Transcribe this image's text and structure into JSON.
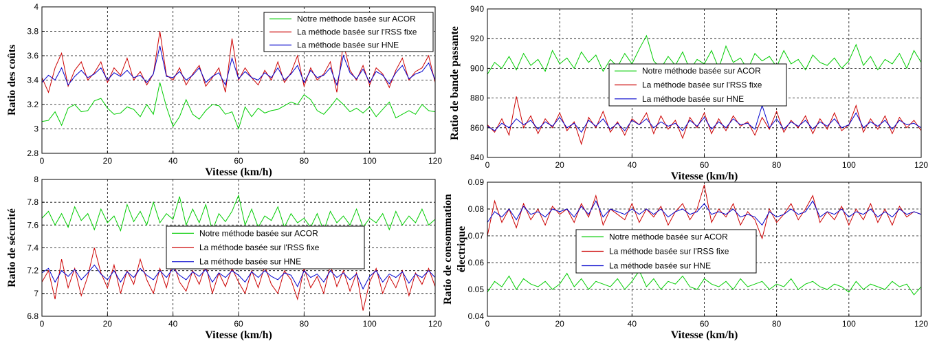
{
  "colors": {
    "acor": "#00cc00",
    "rss": "#cc0000",
    "hne": "#0000cc",
    "grid": "#000000"
  },
  "chart_data": [
    {
      "type": "line",
      "xlabel": "Vitesse (km/h)",
      "ylabel": [
        "Ratio des coûts"
      ],
      "xlim": [
        0,
        120
      ],
      "ylim": [
        2.8,
        4.0
      ],
      "xticks": [
        "0",
        "20",
        "40",
        "60",
        "80",
        "100",
        "120"
      ],
      "yticks": [
        "2.8",
        "3",
        "3.2",
        "3.4",
        "3.6",
        "3.8",
        "4"
      ],
      "grid": true,
      "legend_position": "top-right",
      "x": [
        0,
        2,
        4,
        6,
        8,
        10,
        12,
        14,
        16,
        18,
        20,
        22,
        24,
        26,
        28,
        30,
        32,
        34,
        36,
        38,
        40,
        42,
        44,
        46,
        48,
        50,
        52,
        54,
        56,
        58,
        60,
        62,
        64,
        66,
        68,
        70,
        72,
        74,
        76,
        78,
        80,
        82,
        84,
        86,
        88,
        90,
        92,
        94,
        96,
        98,
        100,
        102,
        104,
        106,
        108,
        110,
        112,
        114,
        116,
        118,
        120
      ],
      "series": [
        {
          "name": "Notre méthode basée sur ACOR",
          "key": "acor",
          "values": [
            3.06,
            3.07,
            3.14,
            3.03,
            3.17,
            3.2,
            3.14,
            3.15,
            3.23,
            3.25,
            3.17,
            3.12,
            3.13,
            3.18,
            3.16,
            3.1,
            3.2,
            3.12,
            3.38,
            3.18,
            3.02,
            3.1,
            3.24,
            3.12,
            3.08,
            3.15,
            3.2,
            3.19,
            3.12,
            3.14,
            3.0,
            3.18,
            3.1,
            3.17,
            3.13,
            3.15,
            3.16,
            3.19,
            3.22,
            3.2,
            3.28,
            3.24,
            3.15,
            3.12,
            3.18,
            3.25,
            3.2,
            3.14,
            3.17,
            3.13,
            3.18,
            3.1,
            3.16,
            3.22,
            3.09,
            3.12,
            3.15,
            3.12,
            3.2,
            3.15,
            3.14
          ]
        },
        {
          "name": "La méthode basée sur l'RSS fixe",
          "key": "rss",
          "values": [
            3.42,
            3.3,
            3.5,
            3.62,
            3.35,
            3.48,
            3.55,
            3.4,
            3.46,
            3.55,
            3.38,
            3.5,
            3.44,
            3.58,
            3.4,
            3.47,
            3.36,
            3.45,
            3.8,
            3.44,
            3.4,
            3.5,
            3.36,
            3.45,
            3.52,
            3.35,
            3.42,
            3.5,
            3.3,
            3.74,
            3.4,
            3.5,
            3.42,
            3.36,
            3.48,
            3.4,
            3.55,
            3.38,
            3.46,
            3.6,
            3.35,
            3.5,
            3.4,
            3.45,
            3.55,
            3.3,
            3.7,
            3.48,
            3.4,
            3.52,
            3.36,
            3.5,
            3.45,
            3.34,
            3.48,
            3.58,
            3.4,
            3.47,
            3.5,
            3.6,
            3.38
          ]
        },
        {
          "name": "La méthode basée sur HNE",
          "key": "hne",
          "values": [
            3.38,
            3.44,
            3.4,
            3.5,
            3.36,
            3.43,
            3.48,
            3.42,
            3.45,
            3.5,
            3.4,
            3.46,
            3.43,
            3.48,
            3.42,
            3.44,
            3.38,
            3.45,
            3.68,
            3.43,
            3.42,
            3.47,
            3.4,
            3.44,
            3.5,
            3.38,
            3.43,
            3.46,
            3.36,
            3.58,
            3.41,
            3.47,
            3.42,
            3.4,
            3.46,
            3.42,
            3.5,
            3.4,
            3.45,
            3.52,
            3.38,
            3.48,
            3.42,
            3.44,
            3.5,
            3.36,
            3.6,
            3.46,
            3.41,
            3.49,
            3.38,
            3.47,
            3.44,
            3.37,
            3.46,
            3.52,
            3.41,
            3.45,
            3.47,
            3.54,
            3.4
          ]
        }
      ]
    },
    {
      "type": "line",
      "xlabel": "Vitesse (km/h)",
      "ylabel": [
        "Ratio de bande passante"
      ],
      "xlim": [
        0,
        120
      ],
      "ylim": [
        840,
        940
      ],
      "xticks": [
        "0",
        "20",
        "40",
        "60",
        "80",
        "100",
        "120"
      ],
      "yticks": [
        "840",
        "860",
        "880",
        "900",
        "920",
        "940"
      ],
      "grid": true,
      "legend_position": "center",
      "x": [
        0,
        2,
        4,
        6,
        8,
        10,
        12,
        14,
        16,
        18,
        20,
        22,
        24,
        26,
        28,
        30,
        32,
        34,
        36,
        38,
        40,
        42,
        44,
        46,
        48,
        50,
        52,
        54,
        56,
        58,
        60,
        62,
        64,
        66,
        68,
        70,
        72,
        74,
        76,
        78,
        80,
        82,
        84,
        86,
        88,
        90,
        92,
        94,
        96,
        98,
        100,
        102,
        104,
        106,
        108,
        110,
        112,
        114,
        116,
        118,
        120
      ],
      "series": [
        {
          "name": "Notre méthode basée sur ACOR",
          "key": "acor",
          "values": [
            896,
            904,
            900,
            908,
            899,
            910,
            902,
            906,
            898,
            912,
            903,
            907,
            900,
            911,
            904,
            909,
            898,
            906,
            901,
            910,
            903,
            913,
            922,
            905,
            900,
            908,
            902,
            911,
            899,
            906,
            903,
            912,
            900,
            915,
            904,
            907,
            899,
            910,
            905,
            908,
            901,
            912,
            903,
            906,
            899,
            909,
            904,
            902,
            907,
            900,
            905,
            916,
            902,
            908,
            899,
            906,
            903,
            910,
            900,
            912,
            904
          ]
        },
        {
          "name": "La méthode basée sur l'RSS fixe",
          "key": "rss",
          "values": [
            862,
            857,
            866,
            855,
            881,
            860,
            868,
            856,
            866,
            860,
            870,
            858,
            864,
            849,
            867,
            860,
            871,
            857,
            864,
            855,
            866,
            862,
            870,
            856,
            868,
            859,
            865,
            853,
            867,
            860,
            870,
            856,
            866,
            858,
            868,
            861,
            864,
            855,
            867,
            859,
            871,
            857,
            865,
            860,
            868,
            856,
            866,
            859,
            870,
            858,
            862,
            875,
            857,
            866,
            859,
            868,
            856,
            867,
            860,
            865,
            858
          ]
        },
        {
          "name": "La méthode basée sur HNE",
          "key": "hne",
          "values": [
            861,
            858,
            863,
            860,
            866,
            862,
            865,
            859,
            864,
            861,
            867,
            860,
            863,
            857,
            865,
            861,
            866,
            859,
            863,
            858,
            865,
            862,
            866,
            860,
            864,
            861,
            863,
            858,
            865,
            861,
            867,
            859,
            864,
            860,
            866,
            862,
            863,
            859,
            875,
            860,
            866,
            859,
            864,
            861,
            865,
            859,
            864,
            861,
            866,
            860,
            862,
            870,
            860,
            864,
            861,
            865,
            859,
            865,
            862,
            863,
            860
          ]
        }
      ]
    },
    {
      "type": "line",
      "xlabel": "Vitesse (km/h)",
      "ylabel": [
        "Ratio de sécurité"
      ],
      "xlim": [
        0,
        120
      ],
      "ylim": [
        6.8,
        8.0
      ],
      "xticks": [
        "0",
        "20",
        "40",
        "60",
        "80",
        "100",
        "120"
      ],
      "yticks": [
        "6.8",
        "7",
        "7.2",
        "7.4",
        "7.6",
        "7.8",
        "8"
      ],
      "grid": true,
      "legend_position": "center",
      "x": [
        0,
        2,
        4,
        6,
        8,
        10,
        12,
        14,
        16,
        18,
        20,
        22,
        24,
        26,
        28,
        30,
        32,
        34,
        36,
        38,
        40,
        42,
        44,
        46,
        48,
        50,
        52,
        54,
        56,
        58,
        60,
        62,
        64,
        66,
        68,
        70,
        72,
        74,
        76,
        78,
        80,
        82,
        84,
        86,
        88,
        90,
        92,
        94,
        96,
        98,
        100,
        102,
        104,
        106,
        108,
        110,
        112,
        114,
        116,
        118,
        120
      ],
      "series": [
        {
          "name": "Notre méthode basée sur ACOR",
          "key": "acor",
          "values": [
            7.66,
            7.72,
            7.6,
            7.7,
            7.58,
            7.76,
            7.64,
            7.7,
            7.56,
            7.74,
            7.62,
            7.68,
            7.55,
            7.78,
            7.63,
            7.72,
            7.6,
            7.8,
            7.62,
            7.7,
            7.65,
            7.85,
            7.6,
            7.74,
            7.62,
            7.78,
            7.55,
            7.7,
            7.63,
            7.72,
            7.86,
            7.6,
            7.74,
            7.58,
            7.68,
            7.64,
            7.76,
            7.58,
            7.7,
            7.62,
            7.66,
            7.58,
            7.7,
            7.55,
            7.72,
            7.62,
            7.68,
            7.6,
            7.74,
            7.58,
            7.66,
            7.62,
            7.7,
            7.56,
            7.72,
            7.6,
            7.68,
            7.62,
            7.74,
            7.6,
            7.65
          ]
        },
        {
          "name": "La méthode basée sur l'RSS fixe",
          "key": "rss",
          "values": [
            7.1,
            7.2,
            6.95,
            7.3,
            7.05,
            7.22,
            6.98,
            7.15,
            7.4,
            7.18,
            7.05,
            7.25,
            7.0,
            7.2,
            7.08,
            7.3,
            7.12,
            7.0,
            7.22,
            7.05,
            7.28,
            7.1,
            7.02,
            7.2,
            7.08,
            7.25,
            7.0,
            7.18,
            7.06,
            7.22,
            7.1,
            7.0,
            7.2,
            7.05,
            7.24,
            7.08,
            7.0,
            7.2,
            7.12,
            6.95,
            7.22,
            7.05,
            7.15,
            7.0,
            7.25,
            7.06,
            7.2,
            7.02,
            7.18,
            6.85,
            7.1,
            7.22,
            7.0,
            7.15,
            7.05,
            7.2,
            6.98,
            7.18,
            7.08,
            7.22,
            7.06
          ]
        },
        {
          "name": "La méthode basée sur HNE",
          "key": "hne",
          "values": [
            7.18,
            7.22,
            7.1,
            7.2,
            7.15,
            7.21,
            7.12,
            7.18,
            7.25,
            7.17,
            7.12,
            7.2,
            7.1,
            7.19,
            7.14,
            7.22,
            7.16,
            7.12,
            7.2,
            7.14,
            7.22,
            7.16,
            7.12,
            7.19,
            7.15,
            7.21,
            7.1,
            7.18,
            7.14,
            7.2,
            7.16,
            7.1,
            7.19,
            7.14,
            7.2,
            7.15,
            7.12,
            7.18,
            7.16,
            7.06,
            7.2,
            7.14,
            7.17,
            7.1,
            7.2,
            7.14,
            7.18,
            7.12,
            7.17,
            7.04,
            7.15,
            7.2,
            7.1,
            7.17,
            7.14,
            7.19,
            7.09,
            7.17,
            7.14,
            7.2,
            7.14
          ]
        }
      ]
    },
    {
      "type": "line",
      "xlabel": "Vitesse (km/h)",
      "ylabel": [
        "Ratio de consommation",
        "électrique"
      ],
      "xlim": [
        0,
        120
      ],
      "ylim": [
        0.04,
        0.09
      ],
      "xticks": [
        "0",
        "20",
        "40",
        "60",
        "80",
        "100",
        "120"
      ],
      "yticks": [
        "0.04",
        "0.05",
        "0.06",
        "0.07",
        "0.08",
        "0.09"
      ],
      "grid": true,
      "legend_position": "center",
      "x": [
        0,
        2,
        4,
        6,
        8,
        10,
        12,
        14,
        16,
        18,
        20,
        22,
        24,
        26,
        28,
        30,
        32,
        34,
        36,
        38,
        40,
        42,
        44,
        46,
        48,
        50,
        52,
        54,
        56,
        58,
        60,
        62,
        64,
        66,
        68,
        70,
        72,
        74,
        76,
        78,
        80,
        82,
        84,
        86,
        88,
        90,
        92,
        94,
        96,
        98,
        100,
        102,
        104,
        106,
        108,
        110,
        112,
        114,
        116,
        118,
        120
      ],
      "series": [
        {
          "name": "Notre méthode basée sur ACOR",
          "key": "acor",
          "values": [
            0.049,
            0.053,
            0.051,
            0.055,
            0.05,
            0.054,
            0.052,
            0.051,
            0.053,
            0.05,
            0.052,
            0.056,
            0.051,
            0.054,
            0.05,
            0.053,
            0.052,
            0.051,
            0.054,
            0.05,
            0.053,
            0.057,
            0.051,
            0.054,
            0.05,
            0.053,
            0.052,
            0.055,
            0.051,
            0.05,
            0.054,
            0.052,
            0.051,
            0.053,
            0.05,
            0.054,
            0.051,
            0.052,
            0.053,
            0.05,
            0.052,
            0.051,
            0.054,
            0.05,
            0.052,
            0.053,
            0.051,
            0.05,
            0.052,
            0.051,
            0.049,
            0.053,
            0.05,
            0.052,
            0.051,
            0.05,
            0.053,
            0.051,
            0.052,
            0.048,
            0.051
          ]
        },
        {
          "name": "La méthode basée sur l'RSS fixe",
          "key": "rss",
          "values": [
            0.07,
            0.083,
            0.075,
            0.08,
            0.073,
            0.082,
            0.076,
            0.08,
            0.074,
            0.081,
            0.078,
            0.08,
            0.075,
            0.082,
            0.077,
            0.085,
            0.074,
            0.08,
            0.078,
            0.076,
            0.082,
            0.075,
            0.08,
            0.077,
            0.081,
            0.074,
            0.079,
            0.082,
            0.076,
            0.08,
            0.089,
            0.075,
            0.08,
            0.077,
            0.082,
            0.074,
            0.079,
            0.076,
            0.069,
            0.08,
            0.075,
            0.078,
            0.082,
            0.076,
            0.08,
            0.085,
            0.075,
            0.079,
            0.076,
            0.081,
            0.074,
            0.08,
            0.076,
            0.082,
            0.075,
            0.08,
            0.074,
            0.081,
            0.077,
            0.079,
            0.078
          ]
        },
        {
          "name": "La méthode basée sur HNE",
          "key": "hne",
          "values": [
            0.075,
            0.079,
            0.077,
            0.08,
            0.076,
            0.081,
            0.078,
            0.079,
            0.077,
            0.08,
            0.079,
            0.08,
            0.077,
            0.081,
            0.078,
            0.083,
            0.077,
            0.08,
            0.079,
            0.078,
            0.08,
            0.078,
            0.08,
            0.078,
            0.08,
            0.077,
            0.079,
            0.08,
            0.078,
            0.079,
            0.082,
            0.078,
            0.079,
            0.078,
            0.08,
            0.077,
            0.078,
            0.077,
            0.074,
            0.079,
            0.077,
            0.078,
            0.08,
            0.078,
            0.079,
            0.083,
            0.077,
            0.079,
            0.078,
            0.08,
            0.077,
            0.079,
            0.078,
            0.08,
            0.077,
            0.079,
            0.077,
            0.08,
            0.078,
            0.079,
            0.078
          ]
        }
      ]
    }
  ]
}
